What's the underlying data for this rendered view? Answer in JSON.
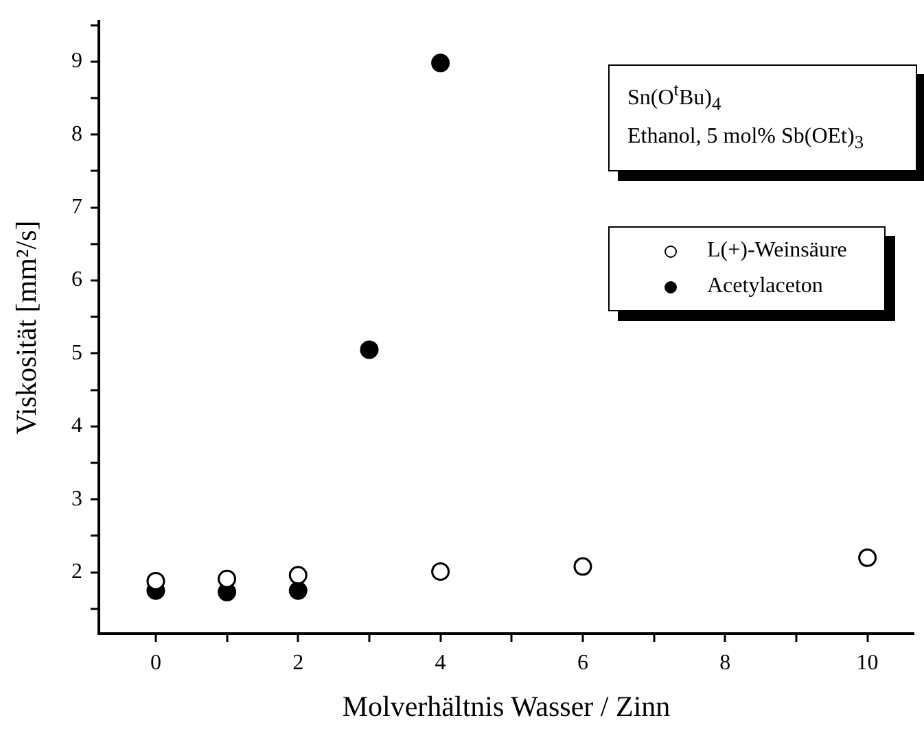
{
  "chart_data": {
    "type": "scatter",
    "xlabel": "Molverhältnis Wasser / Zinn",
    "ylabel": "Viskosität [mm²/s]",
    "annotations": [
      "Sn(O$^{t}$Bu)$_{4}$",
      "Ethanol, 5 mol% Sb(OEt)$_{3}$"
    ],
    "series": [
      {
        "name": "L(+)-Weinsäure",
        "color": "#000000",
        "marker": "circle_open",
        "x": [
          0,
          1,
          2,
          4,
          6,
          10
        ],
        "values": [
          1.88,
          1.91,
          1.96,
          2.01,
          2.08,
          2.2
        ]
      },
      {
        "name": "Acetylaceton",
        "color": "#000000",
        "marker": "circle",
        "x": [
          0,
          1,
          2,
          3,
          4
        ],
        "values": [
          1.75,
          1.73,
          1.75,
          5.05,
          8.98
        ]
      }
    ],
    "xlim": [
      -0.8,
      10.65
    ],
    "ylim": [
      1.16,
      9.55
    ],
    "xticks": [
      0,
      {
        "value": 1,
        "label": null
      },
      2,
      {
        "value": 3,
        "label": null
      },
      4,
      {
        "value": 5,
        "label": null
      },
      6,
      {
        "value": 7,
        "label": null
      },
      8,
      {
        "value": 9,
        "label": null
      },
      10
    ],
    "yticks": [
      {
        "value": 1.5,
        "label": null
      },
      2,
      {
        "value": 2.5,
        "label": null
      },
      3,
      {
        "value": 3.5,
        "label": null
      },
      4,
      {
        "value": 4.5,
        "label": null
      },
      5,
      {
        "value": 5.5,
        "label": null
      },
      6,
      {
        "value": 6.5,
        "label": null
      },
      7,
      {
        "value": 7.5,
        "label": null
      },
      8,
      {
        "value": 8.5,
        "label": null
      },
      9,
      {
        "value": 9.5,
        "label": null
      }
    ],
    "grid": false,
    "legend": "top right"
  }
}
